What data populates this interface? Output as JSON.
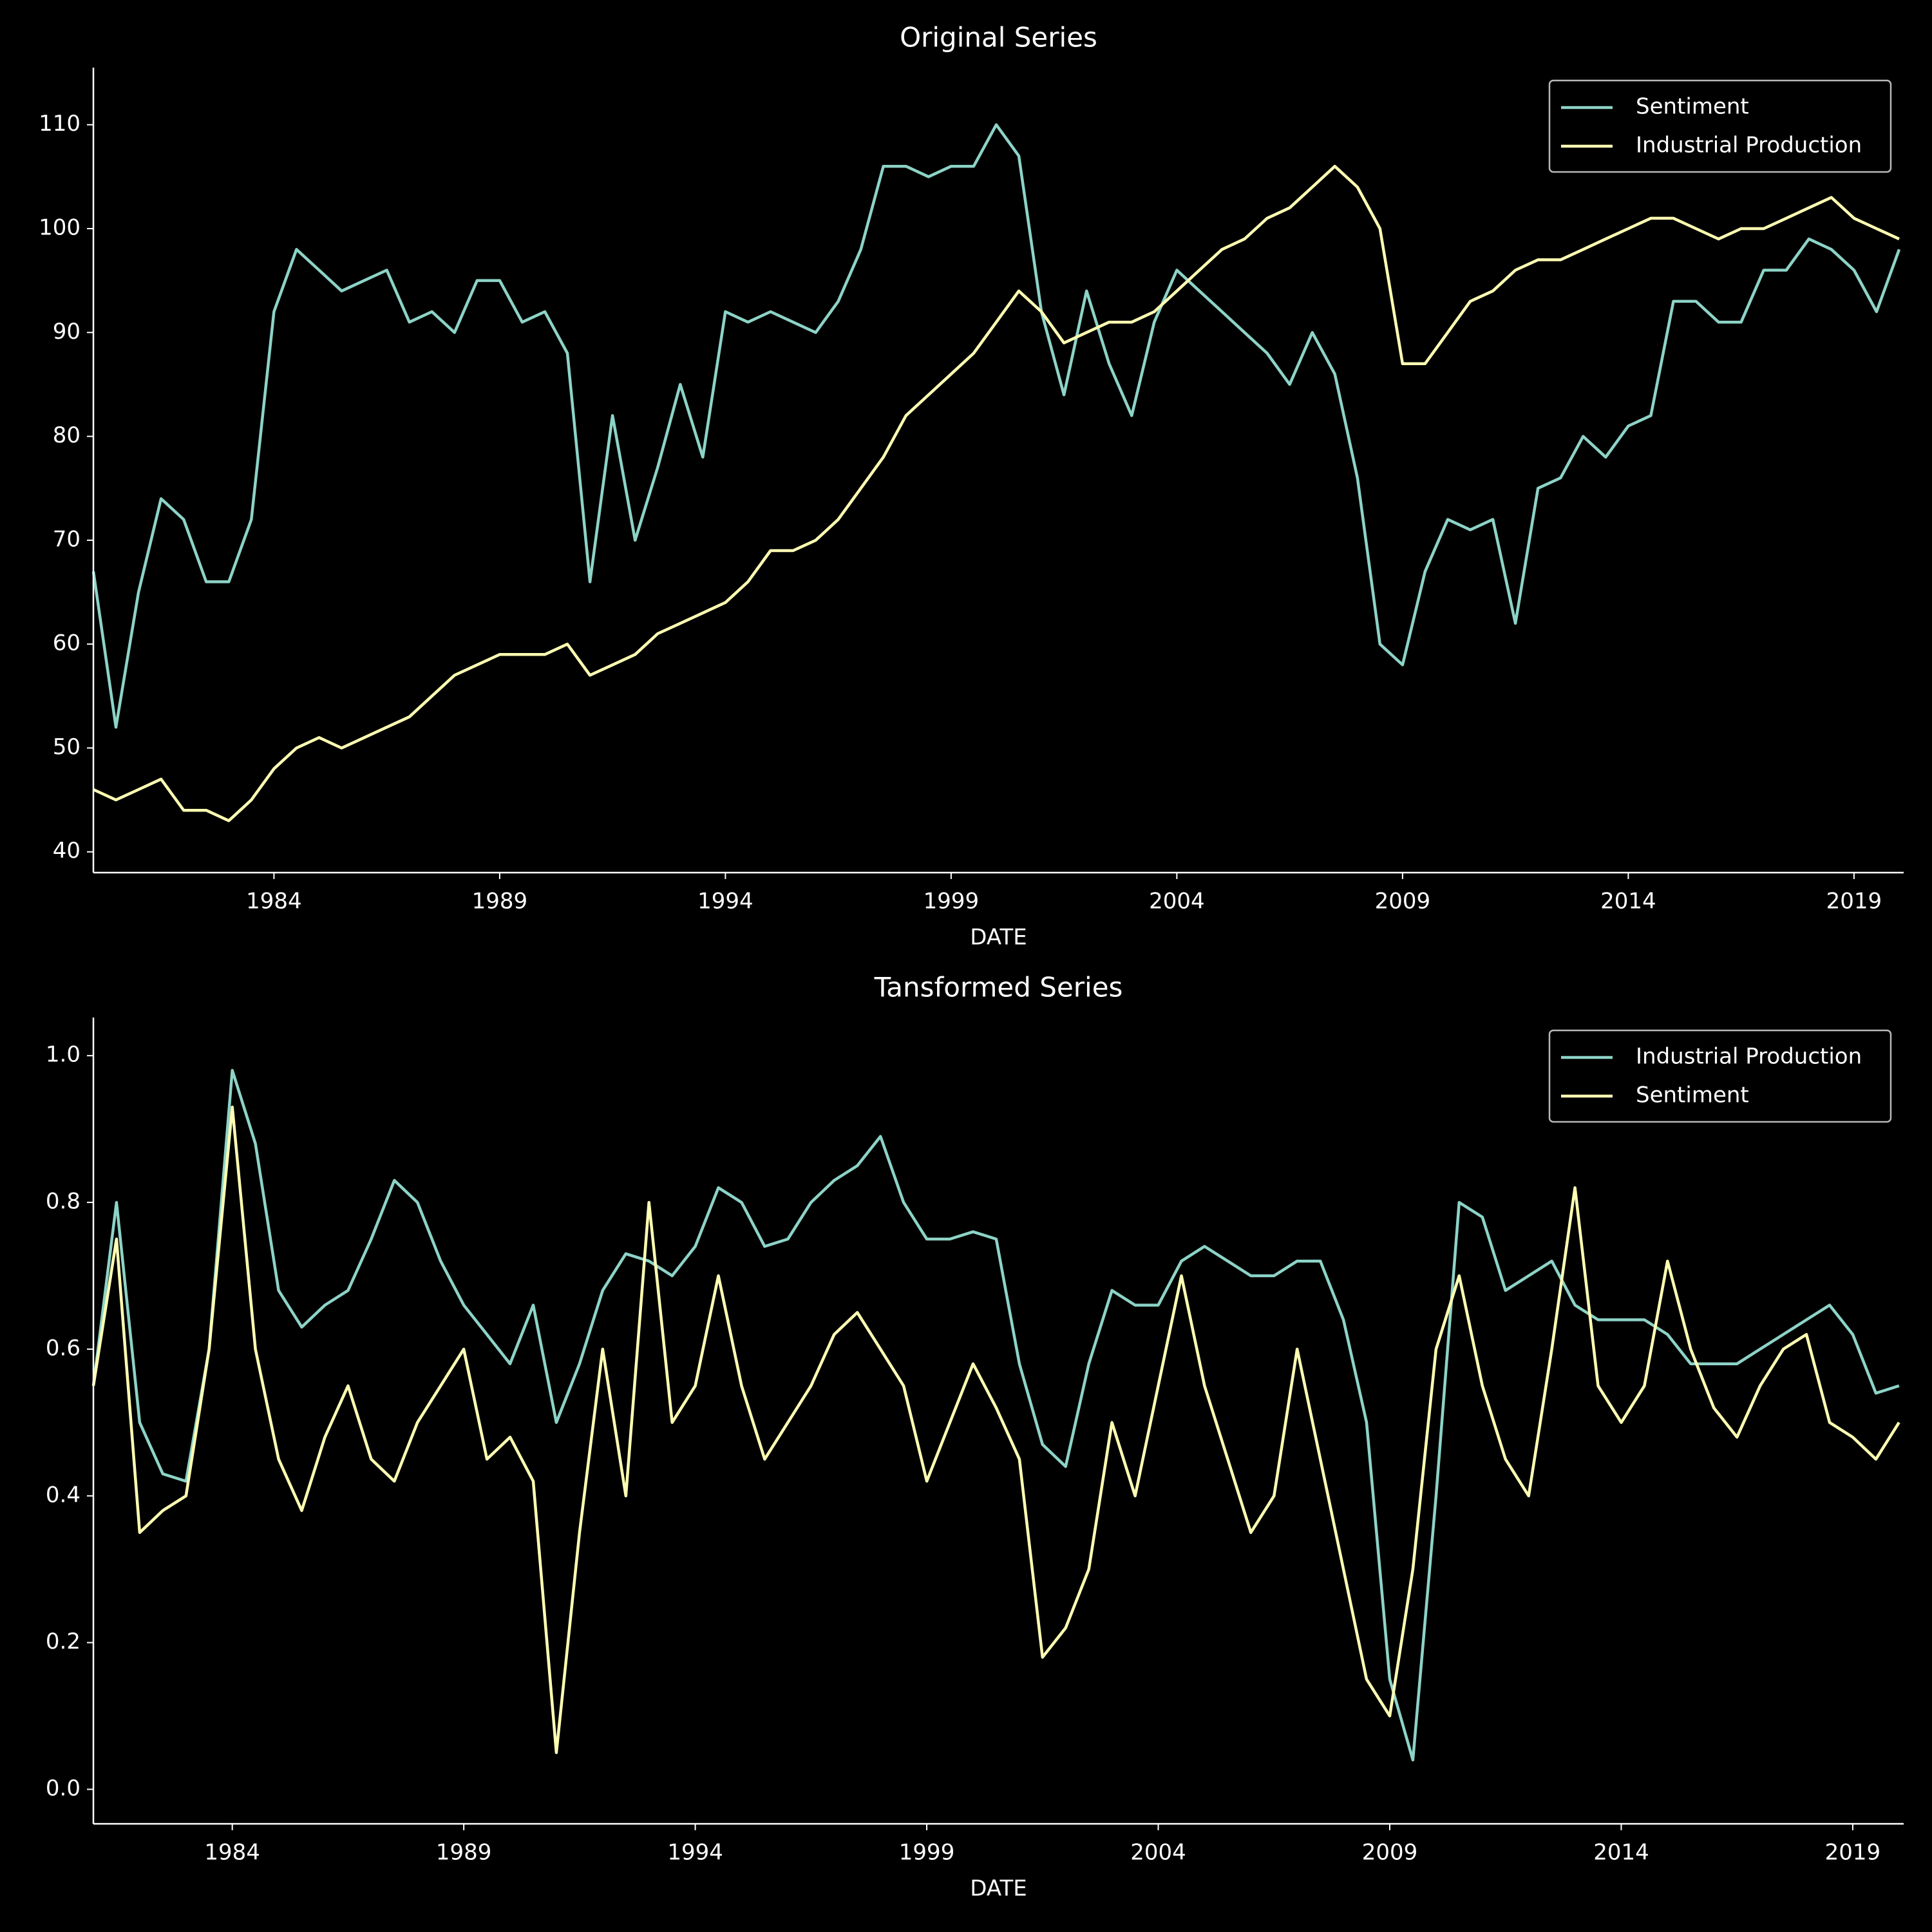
{
  "chart_data": [
    {
      "type": "line",
      "title": "Original Series",
      "xlabel": "DATE",
      "legend": "upper right",
      "grid": false,
      "x": [
        1980.0,
        1980.5,
        1981.0,
        1981.5,
        1982.0,
        1982.5,
        1983.0,
        1983.5,
        1984.0,
        1984.5,
        1985.0,
        1985.5,
        1986.0,
        1986.5,
        1987.0,
        1987.5,
        1988.0,
        1988.5,
        1989.0,
        1989.5,
        1990.0,
        1990.5,
        1991.0,
        1991.5,
        1992.0,
        1992.5,
        1993.0,
        1993.5,
        1994.0,
        1994.5,
        1995.0,
        1995.5,
        1996.0,
        1996.5,
        1997.0,
        1997.5,
        1998.0,
        1998.5,
        1999.0,
        1999.5,
        2000.0,
        2000.5,
        2001.0,
        2001.5,
        2002.0,
        2002.5,
        2003.0,
        2003.5,
        2004.0,
        2004.5,
        2005.0,
        2005.5,
        2006.0,
        2006.5,
        2007.0,
        2007.5,
        2008.0,
        2008.5,
        2009.0,
        2009.5,
        2010.0,
        2010.5,
        2011.0,
        2011.5,
        2012.0,
        2012.5,
        2013.0,
        2013.5,
        2014.0,
        2014.5,
        2015.0,
        2015.5,
        2016.0,
        2016.5,
        2017.0,
        2017.5,
        2018.0,
        2018.5,
        2019.0,
        2019.5,
        2020.0
      ],
      "series": [
        {
          "name": "Sentiment",
          "color": "#8dd3c7",
          "values": [
            67,
            52,
            65,
            74,
            72,
            66,
            66,
            72,
            92,
            98,
            96,
            94,
            95,
            96,
            91,
            92,
            90,
            95,
            95,
            91,
            92,
            88,
            66,
            82,
            70,
            77,
            85,
            78,
            92,
            91,
            92,
            91,
            90,
            93,
            98,
            106,
            106,
            105,
            106,
            106,
            110,
            107,
            92,
            84,
            94,
            87,
            82,
            91,
            96,
            94,
            92,
            90,
            88,
            85,
            90,
            86,
            76,
            60,
            58,
            67,
            72,
            71,
            72,
            62,
            75,
            76,
            80,
            78,
            81,
            82,
            93,
            93,
            91,
            91,
            96,
            96,
            99,
            98,
            96,
            92,
            98
          ]
        },
        {
          "name": "Industrial Production",
          "color": "#ffffb3",
          "values": [
            46,
            45,
            46,
            47,
            44,
            44,
            43,
            45,
            48,
            50,
            51,
            50,
            51,
            52,
            53,
            55,
            57,
            58,
            59,
            59,
            59,
            60,
            57,
            58,
            59,
            61,
            62,
            63,
            64,
            66,
            69,
            69,
            70,
            72,
            75,
            78,
            82,
            84,
            86,
            88,
            91,
            94,
            92,
            89,
            90,
            91,
            91,
            92,
            94,
            96,
            98,
            99,
            101,
            102,
            104,
            106,
            104,
            100,
            87,
            87,
            90,
            93,
            94,
            96,
            97,
            97,
            98,
            99,
            100,
            101,
            101,
            100,
            99,
            100,
            100,
            101,
            102,
            103,
            101,
            100,
            99
          ]
        }
      ],
      "xlim": [
        1980.0,
        2020.1
      ],
      "xticks": [
        1984,
        1989,
        1994,
        1999,
        2004,
        2009,
        2014,
        2019
      ],
      "ylim": [
        38,
        115.5
      ],
      "yticks": [
        40,
        50,
        60,
        70,
        80,
        90,
        100,
        110
      ]
    },
    {
      "type": "line",
      "title": "Tansformed Series",
      "xlabel": "DATE",
      "legend": "upper right",
      "grid": false,
      "x": [
        1981.0,
        1981.5,
        1982.0,
        1982.5,
        1983.0,
        1983.5,
        1984.0,
        1984.5,
        1985.0,
        1985.5,
        1986.0,
        1986.5,
        1987.0,
        1987.5,
        1988.0,
        1988.5,
        1989.0,
        1989.5,
        1990.0,
        1990.5,
        1991.0,
        1991.5,
        1992.0,
        1992.5,
        1993.0,
        1993.5,
        1994.0,
        1994.5,
        1995.0,
        1995.5,
        1996.0,
        1996.5,
        1997.0,
        1997.5,
        1998.0,
        1998.5,
        1999.0,
        1999.5,
        2000.0,
        2000.5,
        2001.0,
        2001.5,
        2002.0,
        2002.5,
        2003.0,
        2003.5,
        2004.0,
        2004.5,
        2005.0,
        2005.5,
        2006.0,
        2006.5,
        2007.0,
        2007.5,
        2008.0,
        2008.5,
        2009.0,
        2009.5,
        2010.0,
        2010.5,
        2011.0,
        2011.5,
        2012.0,
        2012.5,
        2013.0,
        2013.5,
        2014.0,
        2014.5,
        2015.0,
        2015.5,
        2016.0,
        2016.5,
        2017.0,
        2017.5,
        2018.0,
        2018.5,
        2019.0,
        2019.5,
        2020.0
      ],
      "series": [
        {
          "name": "Industrial Production",
          "color": "#8dd3c7",
          "values": [
            0.55,
            0.8,
            0.5,
            0.43,
            0.42,
            0.6,
            0.98,
            0.88,
            0.68,
            0.63,
            0.66,
            0.68,
            0.75,
            0.83,
            0.8,
            0.72,
            0.66,
            0.62,
            0.58,
            0.66,
            0.5,
            0.58,
            0.68,
            0.73,
            0.72,
            0.7,
            0.74,
            0.82,
            0.8,
            0.74,
            0.75,
            0.8,
            0.83,
            0.85,
            0.89,
            0.8,
            0.75,
            0.75,
            0.76,
            0.75,
            0.58,
            0.47,
            0.44,
            0.58,
            0.68,
            0.66,
            0.66,
            0.72,
            0.74,
            0.72,
            0.7,
            0.7,
            0.72,
            0.72,
            0.64,
            0.5,
            0.15,
            0.04,
            0.4,
            0.8,
            0.78,
            0.68,
            0.7,
            0.72,
            0.66,
            0.64,
            0.64,
            0.64,
            0.62,
            0.58,
            0.58,
            0.58,
            0.6,
            0.62,
            0.64,
            0.66,
            0.62,
            0.54,
            0.55
          ]
        },
        {
          "name": "Sentiment",
          "color": "#ffffb3",
          "values": [
            0.55,
            0.75,
            0.35,
            0.38,
            0.4,
            0.6,
            0.93,
            0.6,
            0.45,
            0.38,
            0.48,
            0.55,
            0.45,
            0.42,
            0.5,
            0.55,
            0.6,
            0.45,
            0.48,
            0.42,
            0.05,
            0.35,
            0.6,
            0.4,
            0.8,
            0.5,
            0.55,
            0.7,
            0.55,
            0.45,
            0.5,
            0.55,
            0.62,
            0.65,
            0.6,
            0.55,
            0.42,
            0.5,
            0.58,
            0.52,
            0.45,
            0.18,
            0.22,
            0.3,
            0.5,
            0.4,
            0.55,
            0.7,
            0.55,
            0.45,
            0.35,
            0.4,
            0.6,
            0.45,
            0.3,
            0.15,
            0.1,
            0.3,
            0.6,
            0.7,
            0.55,
            0.45,
            0.4,
            0.6,
            0.82,
            0.55,
            0.5,
            0.55,
            0.72,
            0.6,
            0.52,
            0.48,
            0.55,
            0.6,
            0.62,
            0.5,
            0.48,
            0.45,
            0.5
          ]
        }
      ],
      "xlim": [
        1981.0,
        2020.1
      ],
      "xticks": [
        1984,
        1989,
        1994,
        1999,
        2004,
        2009,
        2014,
        2019
      ],
      "ylim": [
        -0.047,
        1.052
      ],
      "yticks": [
        {
          "value": 0,
          "label": "0.0"
        },
        {
          "value": 0.2,
          "label": "0.2"
        },
        {
          "value": 0.4,
          "label": "0.4"
        },
        {
          "value": 0.6,
          "label": "0.6"
        },
        {
          "value": 0.8,
          "label": "0.8"
        },
        {
          "value": 1,
          "label": "1.0"
        }
      ]
    }
  ]
}
